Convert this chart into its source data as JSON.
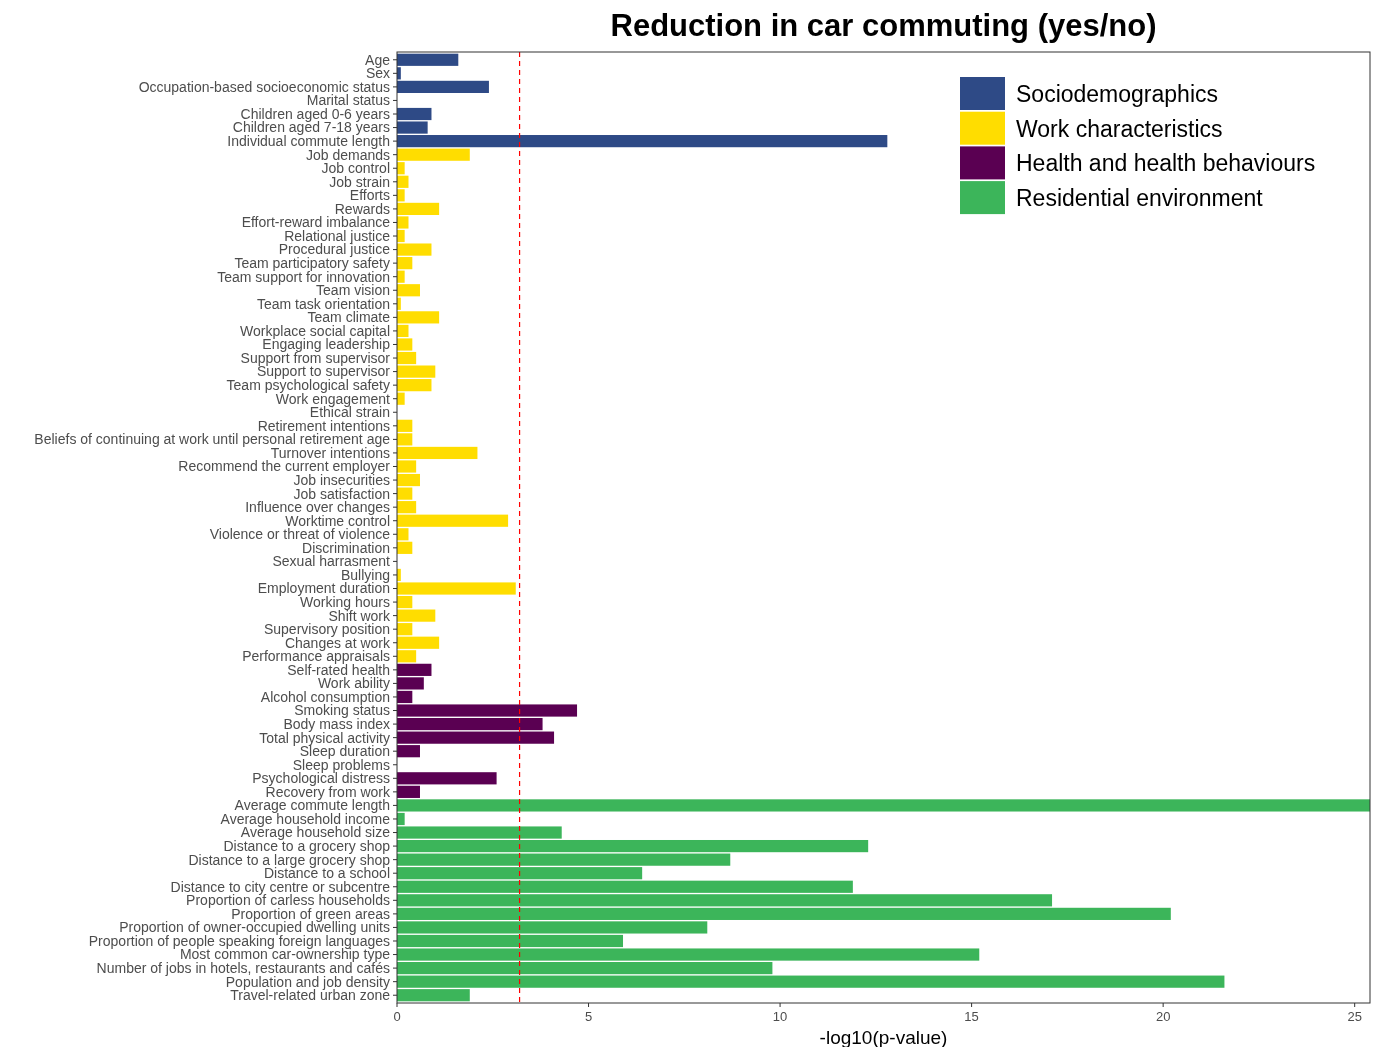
{
  "chart_data": {
    "type": "bar",
    "orientation": "horizontal",
    "title": "Reduction in car commuting (yes/no)",
    "xlabel": "-log10(p-value)",
    "categories": [
      "Age",
      "Sex",
      "Occupation-based socioeconomic status",
      "Marital status",
      "Children aged 0-6 years",
      "Children aged 7-18 years",
      "Individual commute length",
      "Job demands",
      "Job control",
      "Job strain",
      "Efforts",
      "Rewards",
      "Effort-reward imbalance",
      "Relational justice",
      "Procedural justice",
      "Team participatory safety",
      "Team support for innovation",
      "Team vision",
      "Team task orientation",
      "Team climate",
      "Workplace social capital",
      "Engaging leadership",
      "Support from supervisor",
      "Support to supervisor",
      "Team psychological safety",
      "Work engagement",
      "Ethical strain",
      "Retirement intentions",
      "Beliefs of continuing at work until personal retirement age",
      "Turnover intentions",
      "Recommend the current employer",
      "Job insecurities",
      "Job satisfaction",
      "Influence over changes",
      "Worktime control",
      "Violence or threat of violence",
      "Discrimination",
      "Sexual harrasment",
      "Bullying",
      "Employment duration",
      "Working hours",
      "Shift work",
      "Supervisory position",
      "Changes at work",
      "Performance appraisals",
      "Self-rated health",
      "Work ability",
      "Alcohol consumption",
      "Smoking status",
      "Body mass index",
      "Total physical activity",
      "Sleep duration",
      "Sleep problems",
      "Psychological distress",
      "Recovery from work",
      "Average commute length",
      "Average household income",
      "Average household size",
      "Distance to a grocery shop",
      "Distance to a large grocery shop",
      "Distance to a school",
      "Distance to city centre or subcentre",
      "Proportion of carless households",
      "Proportion of green areas",
      "Proportion of owner-occupied dwelling units",
      "Proportion of people speaking foreign languages",
      "Most common car-ownership type",
      "Number of jobs in hotels, restaurants and cafés",
      "Population and job density",
      "Travel-related urban zone"
    ],
    "series": [
      {
        "name": "Sociodemographics",
        "color": "#2e4a86",
        "values": [
          1.6,
          0.1,
          2.4,
          0.0,
          0.9,
          0.8,
          12.8,
          null,
          null,
          null,
          null,
          null,
          null,
          null,
          null,
          null,
          null,
          null,
          null,
          null,
          null,
          null,
          null,
          null,
          null,
          null,
          null,
          null,
          null,
          null,
          null,
          null,
          null,
          null,
          null,
          null,
          null,
          null,
          null,
          null,
          null,
          null,
          null,
          null,
          null,
          null,
          null,
          null,
          null,
          null,
          null,
          null,
          null,
          null,
          null,
          null,
          null,
          null,
          null,
          null,
          null,
          null,
          null,
          null,
          null,
          null,
          null,
          null,
          null,
          null
        ]
      },
      {
        "name": "Work characteristics",
        "color": "#ffdd00",
        "values": [
          null,
          null,
          null,
          null,
          null,
          null,
          null,
          1.9,
          0.2,
          0.3,
          0.2,
          1.1,
          0.3,
          0.2,
          0.9,
          0.4,
          0.2,
          0.6,
          0.1,
          1.1,
          0.3,
          0.4,
          0.5,
          1.0,
          0.9,
          0.2,
          0.0,
          0.4,
          0.4,
          2.1,
          0.5,
          0.6,
          0.4,
          0.5,
          2.9,
          0.3,
          0.4,
          0.0,
          0.1,
          3.1,
          0.4,
          1.0,
          0.4,
          1.1,
          0.5,
          null,
          null,
          null,
          null,
          null,
          null,
          null,
          null,
          null,
          null,
          null,
          null,
          null,
          null,
          null,
          null,
          null,
          null,
          null,
          null,
          null,
          null,
          null,
          null,
          null
        ]
      },
      {
        "name": "Health and health behaviours",
        "color": "#5a0052",
        "values": [
          null,
          null,
          null,
          null,
          null,
          null,
          null,
          null,
          null,
          null,
          null,
          null,
          null,
          null,
          null,
          null,
          null,
          null,
          null,
          null,
          null,
          null,
          null,
          null,
          null,
          null,
          null,
          null,
          null,
          null,
          null,
          null,
          null,
          null,
          null,
          null,
          null,
          null,
          null,
          null,
          null,
          null,
          null,
          null,
          null,
          0.9,
          0.7,
          0.4,
          4.7,
          3.8,
          4.1,
          0.6,
          0.0,
          2.6,
          0.6,
          null,
          null,
          null,
          null,
          null,
          null,
          null,
          null,
          null,
          null,
          null,
          null,
          null,
          null,
          null
        ]
      },
      {
        "name": "Residential environment",
        "color": "#3cb55a",
        "values": [
          null,
          null,
          null,
          null,
          null,
          null,
          null,
          null,
          null,
          null,
          null,
          null,
          null,
          null,
          null,
          null,
          null,
          null,
          null,
          null,
          null,
          null,
          null,
          null,
          null,
          null,
          null,
          null,
          null,
          null,
          null,
          null,
          null,
          null,
          null,
          null,
          null,
          null,
          null,
          null,
          null,
          null,
          null,
          null,
          null,
          null,
          null,
          null,
          null,
          null,
          null,
          null,
          null,
          null,
          null,
          25.4,
          0.2,
          4.3,
          12.3,
          8.7,
          6.4,
          11.9,
          17.1,
          20.2,
          8.1,
          5.9,
          15.2,
          9.8,
          21.6,
          1.9
        ]
      }
    ],
    "xlim": [
      0,
      25.4
    ],
    "xticks": [
      0,
      5,
      10,
      15,
      20,
      25
    ],
    "grid": false,
    "legend": "top right",
    "ref_lines": [
      {
        "axis": "x",
        "value": 3.2,
        "color": "#ff0000",
        "line_style": "dashed"
      }
    ]
  }
}
